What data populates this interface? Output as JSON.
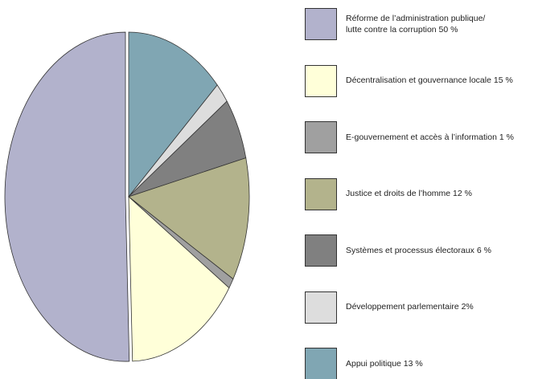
{
  "chart_data": {
    "type": "pie",
    "categories": [
      "Réforme de l’administration publique/\nlutte contre la corruption 50 %",
      "Décentralisation et gouvernance locale 15 %",
      "E-gouvernement et accès à l’information 1 %",
      "Justice et droits de l’homme 12 %",
      "Systèmes et processus électoraux 6 %",
      "Développement parlementaire 2%",
      "Appui politique 13 %"
    ],
    "values": [
      50,
      15,
      1,
      12,
      6,
      2,
      13
    ],
    "colors": [
      "#b2b2cc",
      "#ffffd9",
      "#a0a0a0",
      "#b3b38c",
      "#808080",
      "#dddddd",
      "#80a6b3"
    ],
    "legend": "right"
  }
}
